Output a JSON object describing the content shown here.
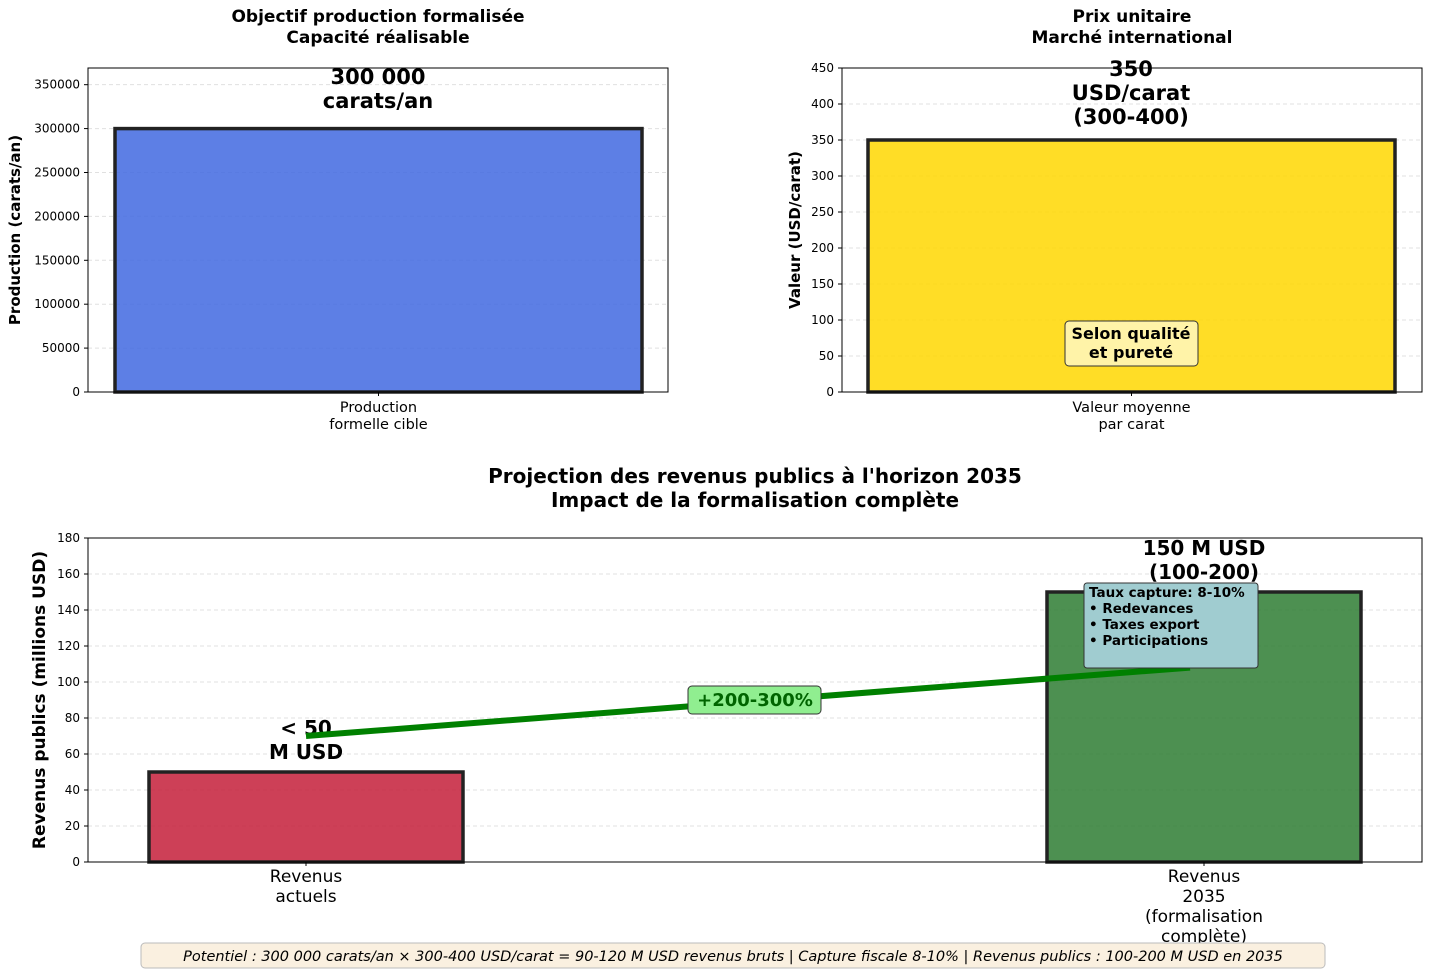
{
  "chart_data": [
    {
      "type": "bar",
      "title": "Objectif production formalisée\nCapacité réalisable",
      "ylabel": "Production (carats/an)",
      "xlabel": "",
      "categories": [
        "Production\nformelle cible"
      ],
      "values": [
        300000
      ],
      "data_labels": [
        "300 000\ncarats/an"
      ],
      "ylim": [
        0,
        369000
      ],
      "yticks": [
        0,
        50000,
        100000,
        150000,
        200000,
        250000,
        300000,
        350000
      ],
      "colors": [
        "#4169e1"
      ],
      "grid": true
    },
    {
      "type": "bar",
      "title": "Prix unitaire\nMarché international",
      "ylabel": "Valeur (USD/carat)",
      "xlabel": "",
      "categories": [
        "Valeur moyenne\npar carat"
      ],
      "values": [
        350
      ],
      "data_labels": [
        "350\nUSD/carat\n(300-400)"
      ],
      "annotation": "Selon qualité\net pureté",
      "ylim": [
        0,
        450
      ],
      "yticks": [
        0,
        50,
        100,
        150,
        200,
        250,
        300,
        350,
        400,
        450
      ],
      "colors": [
        "#ffd700"
      ],
      "grid": true
    },
    {
      "type": "bar",
      "title": "Projection des revenus publics à l'horizon 2035\nImpact de la formalisation complète",
      "ylabel": "Revenus publics (millions USD)",
      "xlabel": "",
      "categories": [
        "Revenus\nactuels",
        "Revenus\n2035\n(formalisation\ncomplète)"
      ],
      "values": [
        50,
        150
      ],
      "data_labels": [
        "< 50\nM USD",
        "150 M USD\n(100-200)"
      ],
      "arrow": {
        "from": 70,
        "to": 108,
        "label": "+200-300%"
      },
      "info_box": "Taux capture: 8-10%\n\n• Redevances\n• Taxes export\n• Participations",
      "ylim": [
        0,
        180
      ],
      "yticks": [
        0,
        20,
        40,
        60,
        80,
        100,
        120,
        140,
        160,
        180
      ],
      "colors": [
        "#c41e3a",
        "#2e7d32"
      ],
      "grid": true
    }
  ],
  "footer": "Potentiel : 300 000 carats/an × 300-400 USD/carat = 90-120 M USD revenus bruts | Capture fiscale 8-10% | Revenus publics : 100-200 M USD en 2035"
}
